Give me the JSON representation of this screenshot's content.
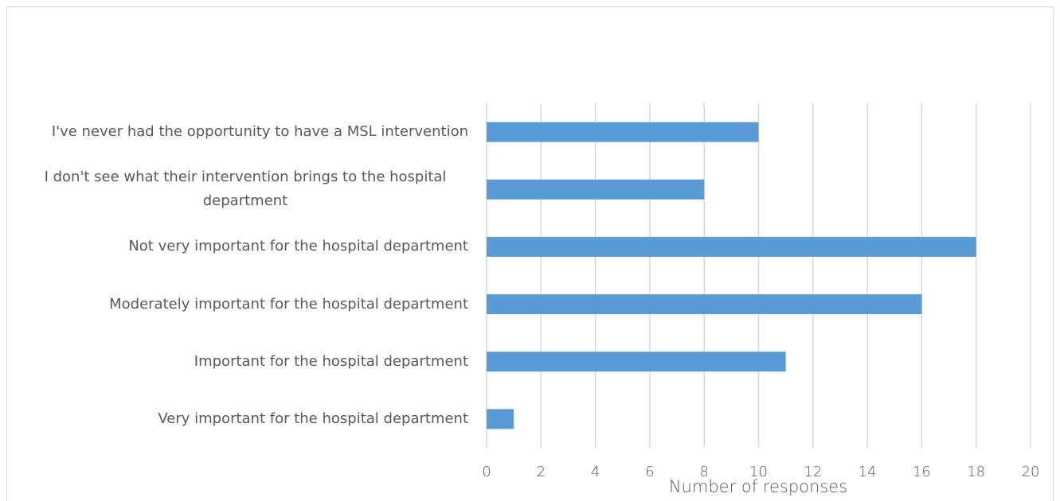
{
  "chart_data": {
    "type": "bar",
    "orientation": "horizontal",
    "categories": [
      "I've never had the opportunity to have a MSL intervention",
      "I don't see what their intervention brings to the hospital department",
      "Not very important for the hospital department",
      "Moderately important for the hospital department",
      "Important for the hospital department",
      "Very important for the hospital department"
    ],
    "values": [
      10,
      8,
      18,
      16,
      11,
      1
    ],
    "color": "#5b9bd5",
    "x_label": "Number of responses",
    "xlim": [
      0,
      20
    ],
    "xticks": [
      0,
      2,
      4,
      6,
      8,
      10,
      12,
      14,
      16,
      18,
      20
    ],
    "grid": true
  }
}
